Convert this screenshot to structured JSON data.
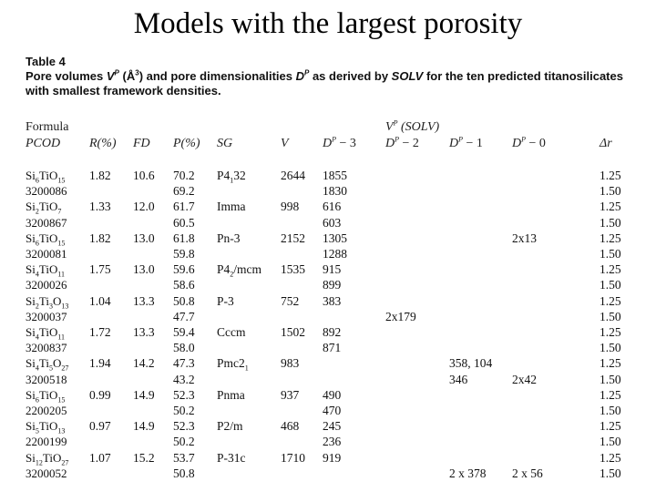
{
  "title": "Models with the largest porosity",
  "caption": {
    "table_label": "Table 4",
    "line1_a": "Pore volumes ",
    "line1_vp": "V",
    "line1_vp_sup": "P",
    "line1_unit": " (Å",
    "line1_unit_sup": "3",
    "line1_b": ") and pore dimensionalities ",
    "line1_dp": "D",
    "line1_dp_sup": "P",
    "line1_c": " as derived by ",
    "line1_solv": "SOLV",
    "line1_d": " for the ten predicted titanosilicates",
    "line2": "with smallest framework densities."
  },
  "headers": {
    "formula": "Formula",
    "pcod": "PCOD",
    "r": "R(%)",
    "fd": "FD",
    "p": "P(%)",
    "sg": "SG",
    "v": "V",
    "vp_solv": "V",
    "vp_solv_sup": "P",
    "vp_solv_b": " (SOLV)",
    "d3": "D",
    "d3_sup": "P",
    "d3_b": " − 3",
    "d2": "D",
    "d2_sup": "P",
    "d2_b": " − 2",
    "d1": "D",
    "d1_sup": "P",
    "d1_b": " − 1",
    "d0": "D",
    "d0_sup": "P",
    "d0_b": " − 0",
    "dr": "Δr"
  },
  "rows": [
    {
      "label": "Si6TiO15",
      "label_base": "Si",
      "sub1": "6",
      "mid": "TiO",
      "sub2": "15",
      "r": "1.82",
      "fd": "10.6",
      "p": "70.2",
      "sg": "P4",
      "sg_sub": "1",
      "sg_b": "32",
      "v": "2644",
      "d3": "1855",
      "d2": "",
      "d1": "",
      "d0": "",
      "dr": "1.25"
    },
    {
      "label": "3200086",
      "p": "69.2",
      "d3": "1830",
      "dr": "1.50"
    },
    {
      "label": "Si2TiO7",
      "label_base": "Si",
      "sub1": "2",
      "mid": "TiO",
      "sub2": "7",
      "r": "1.33",
      "fd": "12.0",
      "p": "61.7",
      "sg": "Imma",
      "v": "998",
      "d3": "616",
      "dr": "1.25"
    },
    {
      "label": "3200867",
      "p": "60.5",
      "d3": "603",
      "dr": "1.50"
    },
    {
      "label": "Si6TiO15",
      "label_base": "Si",
      "sub1": "6",
      "mid": "TiO",
      "sub2": "15",
      "r": "1.82",
      "fd": "13.0",
      "p": "61.8",
      "sg": "Pn-3",
      "v": "2152",
      "d3": "1305",
      "d0": "2x13",
      "dr": "1.25"
    },
    {
      "label": "3200081",
      "p": "59.8",
      "d3": "1288",
      "dr": "1.50"
    },
    {
      "label": "Si4TiO11",
      "label_base": "Si",
      "sub1": "4",
      "mid": "TiO",
      "sub2": "11",
      "r": "1.75",
      "fd": "13.0",
      "p": "59.6",
      "sg": "P4",
      "sg_sub": "2",
      "sg_b": "/mcm",
      "v": "1535",
      "d3": "915",
      "dr": "1.25"
    },
    {
      "label": "3200026",
      "p": "58.6",
      "d3": "899",
      "dr": "1.50"
    },
    {
      "label": "Si2Ti3O13",
      "label_base": "Si",
      "sub1": "2",
      "mid": "Ti",
      "sub_mid": "3",
      "mid2": "O",
      "sub2": "13",
      "r": "1.04",
      "fd": "13.3",
      "p": "50.8",
      "sg": "P-3",
      "v": "752",
      "d3": "383",
      "dr": "1.25"
    },
    {
      "label": "3200037",
      "p": "47.7",
      "d2": "2x179",
      "dr": "1.50"
    },
    {
      "label": "Si4TiO11",
      "label_base": "Si",
      "sub1": "4",
      "mid": "TiO",
      "sub2": "11",
      "r": "1.72",
      "fd": "13.3",
      "p": "59.4",
      "sg": "Cccm",
      "v": "1502",
      "d3": "892",
      "dr": "1.25"
    },
    {
      "label": "3200837",
      "p": "58.0",
      "d3": "871",
      "dr": "1.50"
    },
    {
      "label": "Si4Ti5O27",
      "label_base": "Si",
      "sub1": "4",
      "mid": "Ti",
      "sub_mid": "5",
      "mid2": "O",
      "sub2": "27",
      "r": "1.94",
      "fd": "14.2",
      "p": "47.3",
      "sg": "Pmc2",
      "sg_sub": "1",
      "v": "983",
      "d1": "358, 104",
      "dr": "1.25"
    },
    {
      "label": "3200518",
      "p": "43.2",
      "d1": "346",
      "d0": "2x42",
      "dr": "1.50"
    },
    {
      "label": "Si6TiO15",
      "label_base": "Si",
      "sub1": "6",
      "mid": "TiO",
      "sub2": "15",
      "r": "0.99",
      "fd": "14.9",
      "p": "52.3",
      "sg": "Pnma",
      "v": "937",
      "d3": "490",
      "dr": "1.25"
    },
    {
      "label": "2200205",
      "p": "50.2",
      "d3": "470",
      "dr": "1.50"
    },
    {
      "label": "Si5TiO13",
      "label_base": "Si",
      "sub1": "5",
      "mid": "TiO",
      "sub2": "13",
      "r": "0.97",
      "fd": "14.9",
      "p": "52.3",
      "sg": "P2/m",
      "v": "468",
      "d3": "245",
      "dr": "1.25"
    },
    {
      "label": "2200199",
      "p": "50.2",
      "d3": "236",
      "dr": "1.50"
    },
    {
      "label": "Si12TiO27",
      "label_base": "Si",
      "sub1": "12",
      "mid": "TiO",
      "sub2": "27",
      "r": "1.07",
      "fd": "15.2",
      "p": "53.7",
      "sg": "P-31c",
      "v": "1710",
      "d3": "919",
      "dr": "1.25"
    },
    {
      "label": "3200052",
      "p": "50.8",
      "d1": "2 x 378",
      "d0": "2 x 56",
      "dr": "1.50"
    }
  ]
}
